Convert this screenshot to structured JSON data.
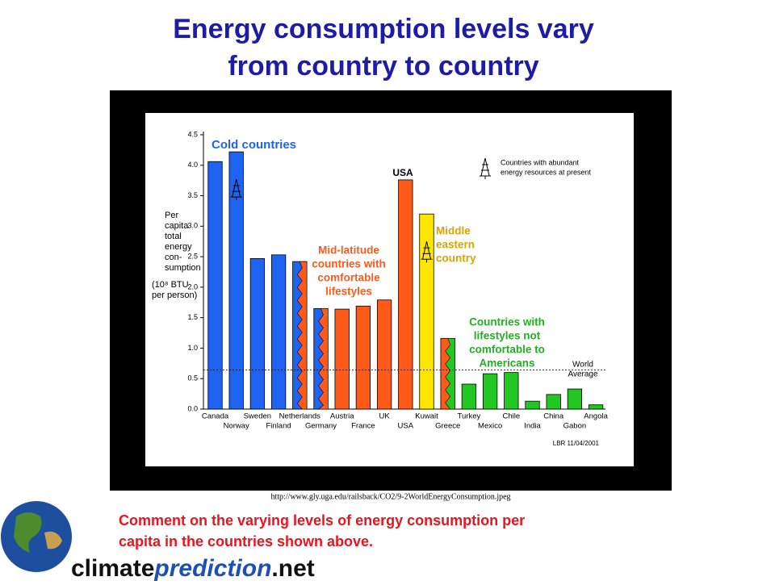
{
  "slide": {
    "title": [
      "Energy consumption levels vary",
      "from country to country"
    ],
    "source": "http://www.gly.uga.edu/railsback/CO2/9-2WorldEnergyConsumption.jpeg",
    "comment": [
      "Comment on the varying levels of energy consumption per",
      "capita in the countries shown above."
    ],
    "logo": [
      "climate",
      "prediction",
      ".net"
    ]
  },
  "chart_data": {
    "type": "bar",
    "ylabel": [
      "Per",
      "capita",
      "total",
      "energy",
      "con-",
      "sumption",
      "(10⁸ BTU",
      "per person)"
    ],
    "categories": [
      "Canada",
      "Norway",
      "Sweden",
      "Finland",
      "Netherlands",
      "Germany",
      "Austria",
      "France",
      "UK",
      "USA",
      "Kuwait",
      "Greece",
      "Turkey",
      "Mexico",
      "Chile",
      "India",
      "China",
      "Gabon",
      "Angola"
    ],
    "values": [
      4.06,
      4.22,
      2.47,
      2.53,
      2.42,
      1.65,
      1.64,
      1.69,
      1.79,
      3.76,
      3.2,
      1.16,
      0.41,
      0.58,
      0.6,
      0.13,
      0.24,
      0.33,
      0.07
    ],
    "colors": [
      "#1f63f2",
      "#1f63f2",
      "#1f63f2",
      "#1f63f2",
      "#1f63f2",
      "#1f63f2",
      "#ff5a1a",
      "#ff5a1a",
      "#ff5a1a",
      "#ff5a1a",
      "#ffe600",
      "#ff5a1a",
      "#22c722",
      "#22c722",
      "#22c722",
      "#22c722",
      "#22c722",
      "#22c722",
      "#22c722"
    ],
    "stripe_colors": [
      null,
      null,
      null,
      null,
      "#ff5a1a",
      "#ff5a1a",
      null,
      null,
      null,
      null,
      null,
      "#22c722",
      null,
      null,
      null,
      null,
      null,
      null,
      null
    ],
    "abundant": [
      false,
      true,
      false,
      false,
      false,
      false,
      false,
      false,
      false,
      false,
      true,
      false,
      false,
      false,
      false,
      false,
      false,
      false,
      false
    ],
    "ylim": [
      0,
      4.5
    ],
    "yticks": [
      {
        "value": 0,
        "label": "0.0"
      },
      0.5,
      {
        "value": 1,
        "label": "1.0"
      },
      1.5,
      {
        "value": 2,
        "label": "2.0"
      },
      2.5,
      {
        "value": 3,
        "label": "3.0"
      },
      3.5,
      {
        "value": 4,
        "label": "4.0"
      },
      4.5
    ],
    "world_average": 0.64,
    "world_average_label": [
      "World",
      "Average"
    ],
    "legend": [
      "Countries with abundant",
      "energy resources at present"
    ],
    "annotations": [
      {
        "lines": [
          "Cold countries"
        ],
        "color": "#1f63f2"
      },
      {
        "lines": [
          "Mid-latitude",
          "countries with",
          "comfortable",
          "lifestyles"
        ],
        "color": "#ff5a1a"
      },
      {
        "lines": [
          "Middle",
          "eastern",
          "country"
        ],
        "color": "#d9a400"
      },
      {
        "lines": [
          "Countries with",
          "lifestyles not",
          "comfortable to",
          "Americans"
        ],
        "color": "#22b022"
      },
      {
        "lines": [
          "USA"
        ],
        "color": "#000000"
      }
    ],
    "credit": "LBR 11/04/2001"
  }
}
